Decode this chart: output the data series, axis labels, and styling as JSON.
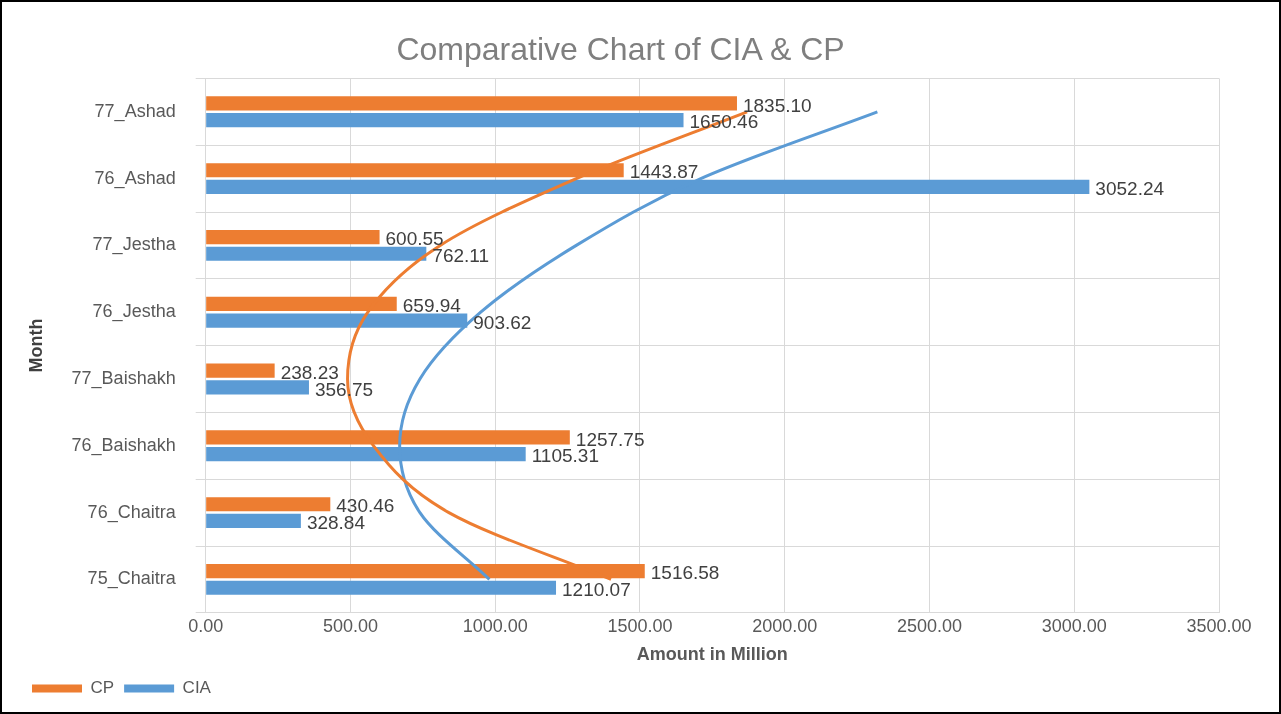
{
  "chart_data": {
    "type": "bar",
    "orientation": "horizontal",
    "title": "Comparative Chart of CIA & CP",
    "xlabel": "Amount in Million",
    "ylabel": "Month",
    "categories": [
      "77_Ashad",
      "76_Ashad",
      "77_Jestha",
      "76_Jestha",
      "77_Baishakh",
      "76_Baishakh",
      "76_Chaitra",
      "75_Chaitra"
    ],
    "series": [
      {
        "name": "CP",
        "color": "#ed7d31",
        "values": [
          1835.1,
          1443.87,
          600.55,
          659.94,
          238.23,
          1257.75,
          430.46,
          1516.58
        ],
        "value_labels": [
          "1835.10",
          "1443.87",
          "600.55",
          "659.94",
          "238.23",
          "1257.75",
          "430.46",
          "1516.58"
        ]
      },
      {
        "name": "CIA",
        "color": "#5b9bd5",
        "values": [
          1650.46,
          3052.24,
          762.11,
          903.62,
          356.75,
          1105.31,
          328.84,
          1210.07
        ],
        "value_labels": [
          "1650.46",
          "3052.24",
          "762.11",
          "903.62",
          "356.75",
          "1105.31",
          "328.84",
          "1210.07"
        ]
      },
      {
        "type": "line",
        "marker": "none",
        "color": "#ed7d31",
        "values": [
          1870,
          1280,
          810,
          560,
          490,
          580,
          840,
          1400
        ]
      },
      {
        "type": "line",
        "marker": "none",
        "color": "#5b9bd5",
        "values": [
          2320,
          1710,
          1280,
          950,
          740,
          670,
          740,
          980
        ]
      }
    ],
    "xlim": [
      0,
      3500
    ],
    "xticks": [
      {
        "value": 0,
        "label": "0.00"
      },
      {
        "value": 500,
        "label": "500.00"
      },
      {
        "value": 1000,
        "label": "1000.00"
      },
      {
        "value": 1500,
        "label": "1500.00"
      },
      {
        "value": 2000,
        "label": "2000.00"
      },
      {
        "value": 2500,
        "label": "2500.00"
      },
      {
        "value": 3000,
        "label": "3000.00"
      },
      {
        "value": 3500,
        "label": "3500.00"
      }
    ],
    "grid": true,
    "legend": "bottom left"
  }
}
